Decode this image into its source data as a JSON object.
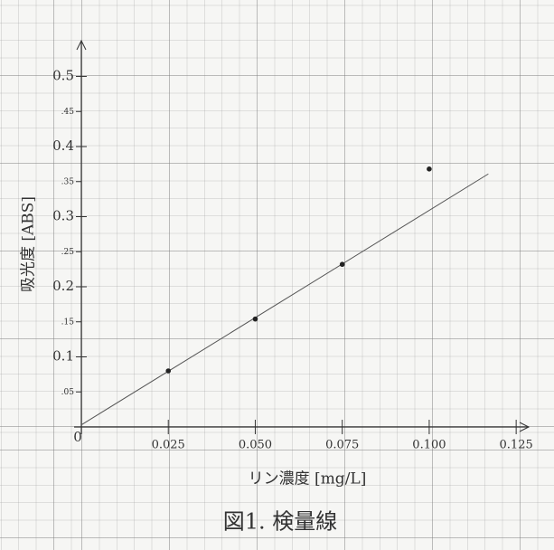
{
  "chart_data": {
    "type": "scatter",
    "title": "図1. 検量線",
    "xlabel": "リン濃度 [mg/L]",
    "ylabel": "吸光度 [ABS]",
    "x": [
      0.025,
      0.05,
      0.075,
      0.1
    ],
    "values": [
      0.08,
      0.154,
      0.232,
      0.368
    ],
    "color": "#222222",
    "trendline": {
      "x": [
        0,
        0.117
      ],
      "values": [
        0.003,
        0.361
      ],
      "color": "#555555"
    },
    "xlim": [
      0,
      0.1286
    ],
    "ylim": [
      0,
      0.551
    ],
    "xticks": [
      0.025,
      {
        "value": 0.05,
        "label": "0.050"
      },
      0.075,
      {
        "value": 0.1,
        "label": "0.100"
      },
      0.125
    ],
    "yticks": [
      {
        "value": 0.05,
        "label": ".05"
      },
      0.1,
      {
        "value": 0.15,
        "label": ".15"
      },
      0.2,
      {
        "value": 0.25,
        "label": ".25"
      },
      0.3,
      {
        "value": 0.35,
        "label": ".35"
      },
      0.4,
      {
        "value": 0.45,
        "label": ".45"
      },
      0.5
    ],
    "origin_label": "0"
  }
}
